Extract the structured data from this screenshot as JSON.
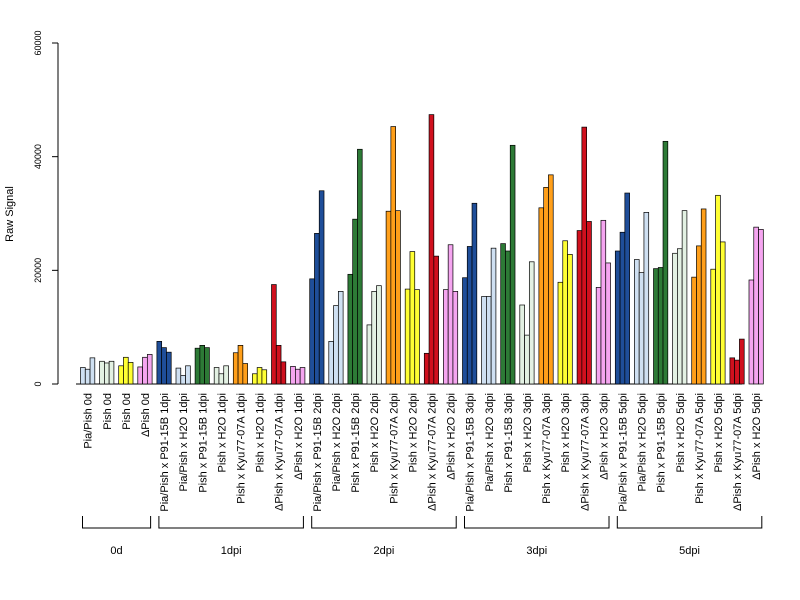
{
  "chart_data": {
    "type": "bar",
    "title": "",
    "xlabel": "",
    "ylabel": "Raw Signal",
    "ylim": [
      0,
      60000
    ],
    "yticks": [
      0,
      20000,
      40000,
      60000
    ],
    "ytick_labels": [
      "0",
      "20000",
      "40000",
      "60000"
    ],
    "grid": false,
    "legend": "none",
    "categories": [
      {
        "label": "Pia/Pish 0d",
        "group": 0,
        "color": "#cfe0f2",
        "values": [
          2900,
          2600,
          4600
        ]
      },
      {
        "label": "Pish 0d",
        "group": 0,
        "color": "#e3f1e3",
        "values": [
          4000,
          3700,
          4000
        ]
      },
      {
        "label": "Pish 0d",
        "group": 0,
        "color": "#ffff33",
        "values": [
          3200,
          4700,
          3800
        ]
      },
      {
        "label": "ΔPish 0d",
        "group": 0,
        "color": "#f5a5f0",
        "values": [
          3000,
          4700,
          5200
        ]
      },
      {
        "label": "Pia/Pish x P91-15B 1dpi",
        "group": 1,
        "color": "#1f4e99",
        "values": [
          7500,
          6400,
          5600
        ]
      },
      {
        "label": "Pia/Pish x H2O 1dpi",
        "group": 1,
        "color": "#cfe0f2",
        "values": [
          2800,
          1500,
          3200
        ]
      },
      {
        "label": "Pish x P91-15B 1dpi",
        "group": 1,
        "color": "#2d7a36",
        "values": [
          6300,
          6800,
          6400
        ]
      },
      {
        "label": "Pish x H2O 1dpi",
        "group": 1,
        "color": "#e3f1e3",
        "values": [
          2900,
          1800,
          3200
        ]
      },
      {
        "label": "Pish x Kyu77-07A 1dpi",
        "group": 1,
        "color": "#ff9f1a",
        "values": [
          5500,
          6800,
          3600
        ]
      },
      {
        "label": "Pish x H2O 1dpi",
        "group": 1,
        "color": "#ffff33",
        "values": [
          1800,
          2900,
          2500
        ]
      },
      {
        "label": "ΔPish x Kyu77-07A 1dpi",
        "group": 1,
        "color": "#d0101e",
        "values": [
          17500,
          6800,
          3900
        ]
      },
      {
        "label": "ΔPish x H2O 1dpi",
        "group": 1,
        "color": "#f5a5f0",
        "values": [
          3100,
          2600,
          2900
        ]
      },
      {
        "label": "Pia/Pish x P91-15B 2dpi",
        "group": 2,
        "color": "#1f4e99",
        "values": [
          18500,
          26500,
          34000
        ]
      },
      {
        "label": "Pia/Pish x H2O 2dpi",
        "group": 2,
        "color": "#cfe0f2",
        "values": [
          7500,
          13800,
          16300
        ]
      },
      {
        "label": "Pish x P91-15B 2dpi",
        "group": 2,
        "color": "#2d7a36",
        "values": [
          19300,
          29000,
          41300
        ]
      },
      {
        "label": "Pish x H2O 2dpi",
        "group": 2,
        "color": "#e3f1e3",
        "values": [
          10400,
          16300,
          17300
        ]
      },
      {
        "label": "Pish x Kyu77-07A 2dpi",
        "group": 2,
        "color": "#ff9f1a",
        "values": [
          30400,
          45300,
          30500
        ]
      },
      {
        "label": "Pish x H2O 2dpi",
        "group": 2,
        "color": "#ffff33",
        "values": [
          16700,
          23300,
          16600
        ]
      },
      {
        "label": "ΔPish x Kyu77-07A 2dpi",
        "group": 2,
        "color": "#d0101e",
        "values": [
          5400,
          47400,
          22500
        ]
      },
      {
        "label": "ΔPish x H2O 2dpi",
        "group": 2,
        "color": "#f5a5f0",
        "values": [
          16600,
          24500,
          16300
        ]
      },
      {
        "label": "Pia/Pish x P91-15B 3dpi",
        "group": 3,
        "color": "#1f4e99",
        "values": [
          18700,
          24200,
          31800
        ]
      },
      {
        "label": "Pia/Pish x H2O 3dpi",
        "group": 3,
        "color": "#cfe0f2",
        "values": [
          15400,
          15400,
          23900
        ]
      },
      {
        "label": "Pish x P91-15B 3dpi",
        "group": 3,
        "color": "#2d7a36",
        "values": [
          24700,
          23400,
          42000
        ]
      },
      {
        "label": "Pish x H2O 3dpi",
        "group": 3,
        "color": "#e3f1e3",
        "values": [
          13900,
          8600,
          21500
        ]
      },
      {
        "label": "Pish x Kyu77-07A 3dpi",
        "group": 3,
        "color": "#ff9f1a",
        "values": [
          31000,
          34600,
          36800
        ]
      },
      {
        "label": "Pish x H2O 3dpi",
        "group": 3,
        "color": "#ffff33",
        "values": [
          17900,
          25200,
          22800
        ]
      },
      {
        "label": "ΔPish x Kyu77-07A 3dpi",
        "group": 3,
        "color": "#d0101e",
        "values": [
          27000,
          45200,
          28600
        ]
      },
      {
        "label": "ΔPish x H2O 3dpi",
        "group": 3,
        "color": "#f5a5f0",
        "values": [
          17000,
          28800,
          21300
        ]
      },
      {
        "label": "Pia/Pish x P91-15B 5dpi",
        "group": 4,
        "color": "#1f4e99",
        "values": [
          23400,
          26700,
          33600
        ]
      },
      {
        "label": "Pia/Pish x H2O 5dpi",
        "group": 4,
        "color": "#cfe0f2",
        "values": [
          21900,
          19600,
          30200
        ]
      },
      {
        "label": "Pish x P91-15B 5dpi",
        "group": 4,
        "color": "#2d7a36",
        "values": [
          20300,
          20500,
          42700
        ]
      },
      {
        "label": "Pish x H2O 5dpi",
        "group": 4,
        "color": "#e3f1e3",
        "values": [
          23000,
          23800,
          30500
        ]
      },
      {
        "label": "Pish x Kyu77-07A 5dpi",
        "group": 4,
        "color": "#ff9f1a",
        "values": [
          18800,
          24300,
          30800
        ]
      },
      {
        "label": "Pish x H2O 5dpi",
        "group": 4,
        "color": "#ffff33",
        "values": [
          20200,
          33200,
          25000
        ]
      },
      {
        "label": "ΔPish x Kyu77-07A 5dpi",
        "group": 4,
        "color": "#d0101e",
        "values": [
          4600,
          4200,
          7900
        ]
      },
      {
        "label": "ΔPish x H2O 5dpi",
        "group": 4,
        "color": "#f5a5f0",
        "values": [
          18300,
          27600,
          27200
        ]
      }
    ],
    "groups": [
      {
        "label": "0d"
      },
      {
        "label": "1dpi"
      },
      {
        "label": "2dpi"
      },
      {
        "label": "3dpi"
      },
      {
        "label": "5dpi"
      }
    ]
  }
}
